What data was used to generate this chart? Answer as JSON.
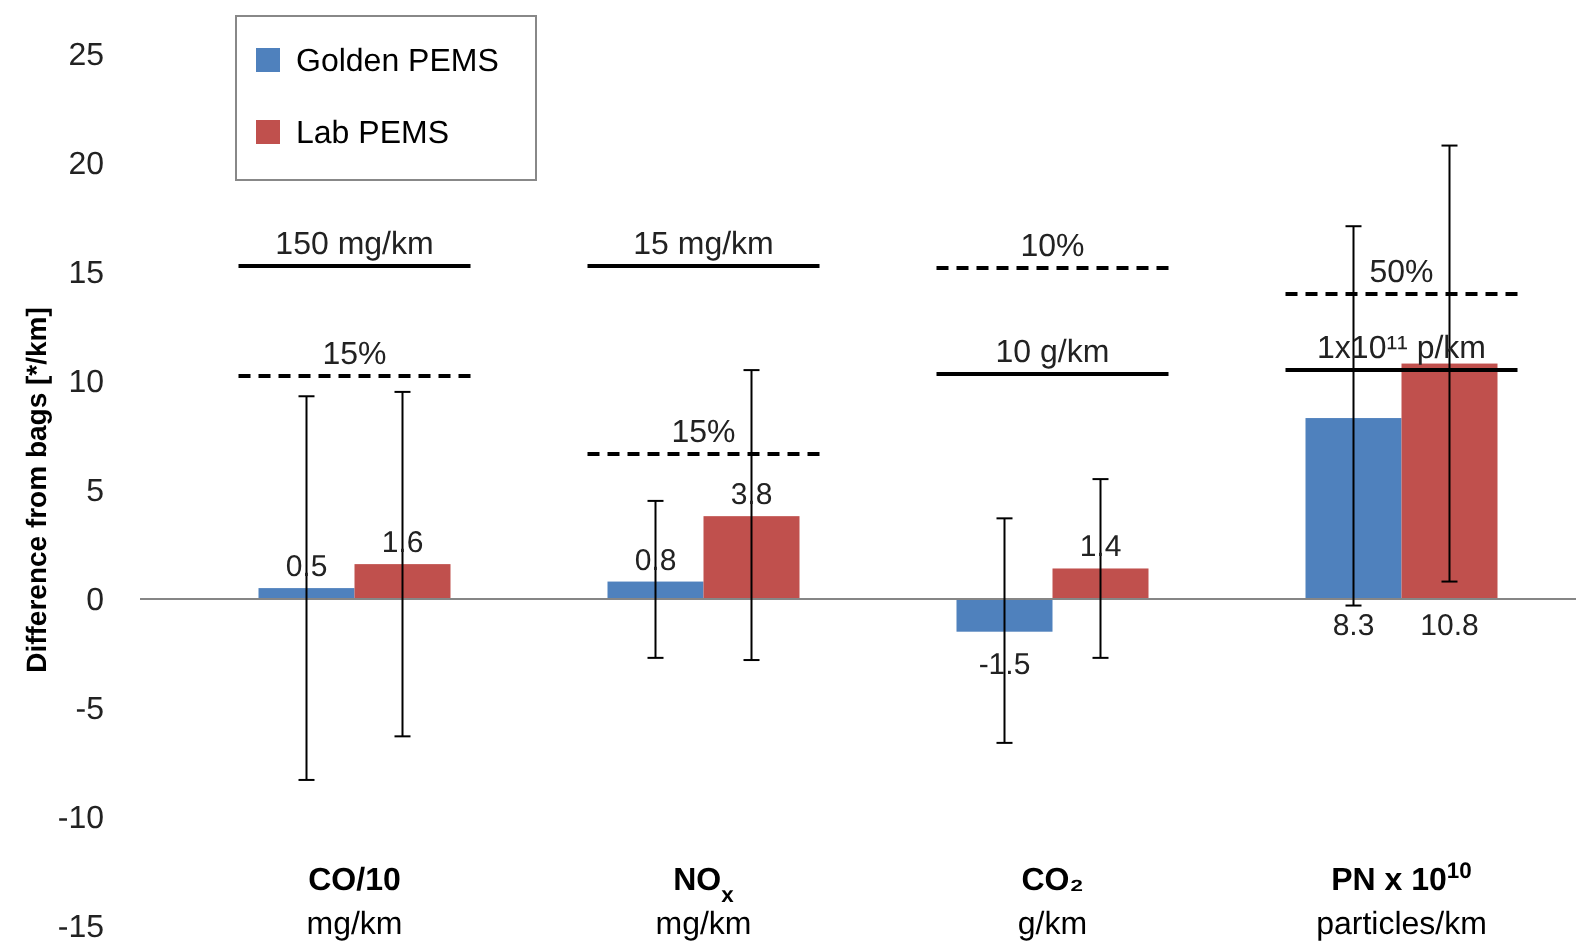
{
  "chart_data": {
    "type": "bar",
    "ylabel": "Difference from bags [*/km]",
    "categories": [
      "CO/10\nmg/km",
      "NO$_{x}$\nmg/km",
      "CO₂\ng/km",
      "PN x 10$^{10}$\nparticles/km"
    ],
    "series": [
      {
        "name": "Golden PEMS",
        "color": "#4f81bd",
        "values": [
          0.5,
          0.8,
          -1.5,
          8.3
        ],
        "errors": [
          [
            -8.3,
            9.3
          ],
          [
            -2.7,
            4.5
          ],
          [
            -6.6,
            3.7
          ],
          [
            -0.3,
            17.1
          ]
        ]
      },
      {
        "name": "Lab PEMS",
        "color": "#c0504d",
        "values": [
          1.6,
          3.8,
          1.4,
          10.8
        ],
        "errors": [
          [
            -6.3,
            9.5
          ],
          [
            -2.8,
            10.5
          ],
          [
            -2.7,
            5.5
          ],
          [
            0.8,
            20.8
          ]
        ]
      }
    ],
    "annotations": [
      "150 mg/km",
      "15%",
      "15 mg/km",
      "15%",
      "10%",
      "10 g/km",
      "50%",
      "1x10¹¹ p/km"
    ],
    "ylim": [
      -15,
      25
    ],
    "yticks": [
      -15,
      -10,
      -5,
      0,
      5,
      10,
      15,
      20,
      25
    ],
    "data_labels": true,
    "legend": "top left"
  }
}
